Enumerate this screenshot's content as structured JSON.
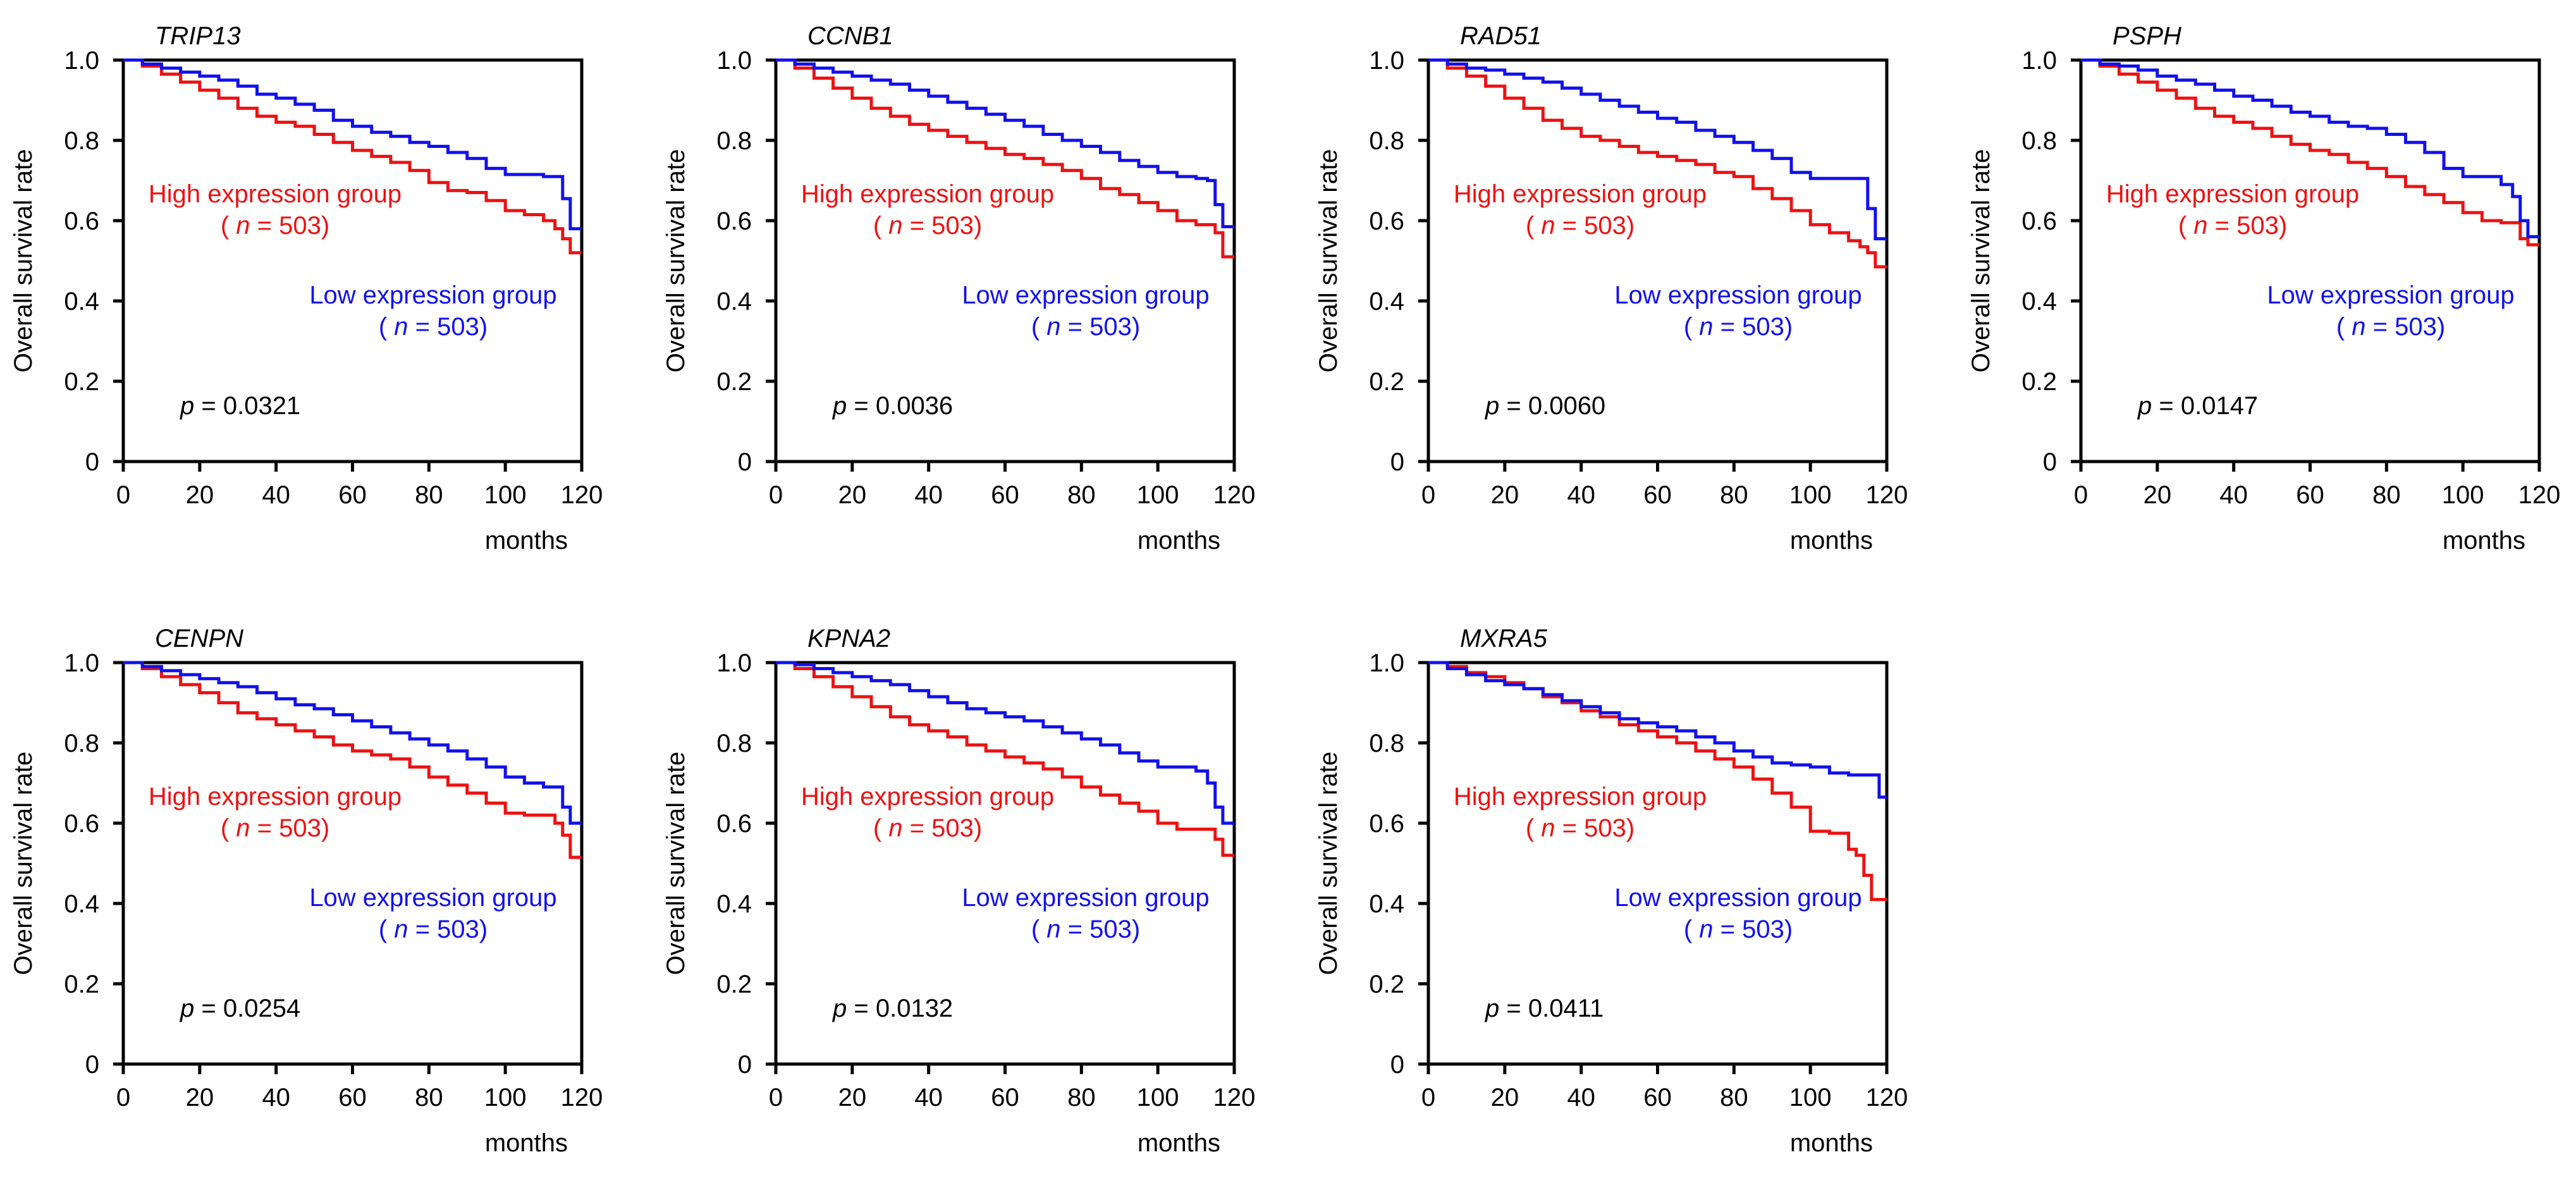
{
  "figure": {
    "xlabel": "months",
    "ylabel": "Overall survival rate",
    "xticks": [
      "0",
      "20",
      "40",
      "60",
      "80",
      "100",
      "120"
    ],
    "yticks": [
      "0",
      "0.2",
      "0.4",
      "0.6",
      "0.8",
      "1.0"
    ],
    "high_group_label": "High expression group",
    "low_group_label": "Low expression group",
    "n_prefix": "( ",
    "n_symbol": "n",
    "n_suffix": " = 503)",
    "p_symbol": "p",
    "colors": {
      "high": "#ee1111",
      "low": "#1111ee",
      "axis": "#000000",
      "text": "#000000"
    }
  },
  "chart_data": [
    {
      "type": "line",
      "title": "TRIP13",
      "p_text": " = 0.0321",
      "xlabel": "months",
      "ylabel": "Overall survival rate",
      "xlim": [
        0,
        120
      ],
      "ylim": [
        0,
        1.0
      ],
      "series": [
        {
          "name": "High expression group (n = 503)",
          "color": "#ee1111",
          "x": [
            0,
            5,
            10,
            15,
            20,
            25,
            30,
            35,
            40,
            45,
            50,
            55,
            60,
            65,
            70,
            75,
            80,
            85,
            90,
            95,
            100,
            105,
            110,
            113,
            115,
            117,
            120
          ],
          "y": [
            1.0,
            0.985,
            0.965,
            0.945,
            0.925,
            0.905,
            0.88,
            0.86,
            0.845,
            0.835,
            0.815,
            0.795,
            0.775,
            0.76,
            0.745,
            0.725,
            0.695,
            0.675,
            0.67,
            0.65,
            0.625,
            0.615,
            0.6,
            0.58,
            0.555,
            0.52,
            0.52
          ]
        },
        {
          "name": "Low expression group (n = 503)",
          "color": "#1111ee",
          "x": [
            0,
            5,
            10,
            15,
            20,
            25,
            30,
            35,
            40,
            45,
            50,
            55,
            60,
            65,
            70,
            75,
            80,
            85,
            90,
            95,
            100,
            105,
            110,
            113,
            115,
            117,
            120
          ],
          "y": [
            1.0,
            0.99,
            0.98,
            0.97,
            0.96,
            0.95,
            0.935,
            0.915,
            0.905,
            0.89,
            0.875,
            0.85,
            0.835,
            0.82,
            0.81,
            0.795,
            0.785,
            0.77,
            0.755,
            0.73,
            0.715,
            0.715,
            0.71,
            0.71,
            0.655,
            0.58,
            0.58
          ]
        }
      ]
    },
    {
      "type": "line",
      "title": "CCNB1",
      "p_text": " = 0.0036",
      "xlabel": "months",
      "ylabel": "Overall survival rate",
      "xlim": [
        0,
        120
      ],
      "ylim": [
        0,
        1.0
      ],
      "series": [
        {
          "name": "High expression group (n = 503)",
          "color": "#ee1111",
          "x": [
            0,
            5,
            10,
            15,
            20,
            25,
            30,
            35,
            40,
            45,
            50,
            55,
            60,
            65,
            70,
            75,
            80,
            85,
            90,
            95,
            100,
            105,
            110,
            113,
            115,
            117,
            120
          ],
          "y": [
            1.0,
            0.98,
            0.955,
            0.93,
            0.905,
            0.88,
            0.86,
            0.84,
            0.825,
            0.81,
            0.795,
            0.78,
            0.765,
            0.755,
            0.74,
            0.725,
            0.705,
            0.68,
            0.665,
            0.645,
            0.625,
            0.6,
            0.59,
            0.59,
            0.57,
            0.51,
            0.51
          ]
        },
        {
          "name": "Low expression group (n = 503)",
          "color": "#1111ee",
          "x": [
            0,
            5,
            10,
            15,
            20,
            25,
            30,
            35,
            40,
            45,
            50,
            55,
            60,
            65,
            70,
            75,
            80,
            85,
            90,
            95,
            100,
            105,
            110,
            113,
            115,
            117,
            120
          ],
          "y": [
            1.0,
            0.99,
            0.98,
            0.97,
            0.96,
            0.95,
            0.94,
            0.925,
            0.91,
            0.895,
            0.88,
            0.865,
            0.85,
            0.835,
            0.815,
            0.8,
            0.785,
            0.77,
            0.75,
            0.735,
            0.72,
            0.71,
            0.705,
            0.7,
            0.64,
            0.585,
            0.585
          ]
        }
      ]
    },
    {
      "type": "line",
      "title": "RAD51",
      "p_text": " = 0.0060",
      "xlabel": "months",
      "ylabel": "Overall survival rate",
      "xlim": [
        0,
        120
      ],
      "ylim": [
        0,
        1.0
      ],
      "series": [
        {
          "name": "High expression group (n = 503)",
          "color": "#ee1111",
          "x": [
            0,
            5,
            10,
            15,
            20,
            25,
            30,
            35,
            40,
            45,
            50,
            55,
            60,
            65,
            70,
            75,
            80,
            85,
            90,
            95,
            100,
            105,
            110,
            113,
            115,
            117,
            120
          ],
          "y": [
            1.0,
            0.98,
            0.96,
            0.935,
            0.905,
            0.88,
            0.85,
            0.83,
            0.81,
            0.8,
            0.785,
            0.77,
            0.76,
            0.75,
            0.74,
            0.72,
            0.71,
            0.68,
            0.655,
            0.625,
            0.59,
            0.57,
            0.55,
            0.535,
            0.52,
            0.485,
            0.485
          ]
        },
        {
          "name": "Low expression group (n = 503)",
          "color": "#1111ee",
          "x": [
            0,
            5,
            10,
            15,
            20,
            25,
            30,
            35,
            40,
            45,
            50,
            55,
            60,
            65,
            70,
            75,
            80,
            85,
            90,
            95,
            100,
            105,
            110,
            113,
            115,
            117,
            120
          ],
          "y": [
            1.0,
            0.99,
            0.98,
            0.975,
            0.965,
            0.955,
            0.945,
            0.93,
            0.915,
            0.9,
            0.885,
            0.87,
            0.855,
            0.845,
            0.825,
            0.81,
            0.795,
            0.775,
            0.755,
            0.72,
            0.705,
            0.705,
            0.705,
            0.705,
            0.63,
            0.555,
            0.555
          ]
        }
      ]
    },
    {
      "type": "line",
      "title": "PSPH",
      "p_text": " = 0.0147",
      "xlabel": "months",
      "ylabel": "Overall survival rate",
      "xlim": [
        0,
        120
      ],
      "ylim": [
        0,
        1.0
      ],
      "series": [
        {
          "name": "High expression group (n = 503)",
          "color": "#ee1111",
          "x": [
            0,
            5,
            10,
            15,
            20,
            25,
            30,
            35,
            40,
            45,
            50,
            55,
            60,
            65,
            70,
            75,
            80,
            85,
            90,
            95,
            100,
            105,
            110,
            113,
            115,
            117,
            120
          ],
          "y": [
            1.0,
            0.985,
            0.965,
            0.945,
            0.925,
            0.905,
            0.88,
            0.86,
            0.845,
            0.83,
            0.81,
            0.79,
            0.775,
            0.765,
            0.745,
            0.73,
            0.71,
            0.685,
            0.665,
            0.645,
            0.62,
            0.6,
            0.595,
            0.595,
            0.555,
            0.54,
            0.54
          ]
        },
        {
          "name": "Low expression group (n = 503)",
          "color": "#1111ee",
          "x": [
            0,
            5,
            10,
            15,
            20,
            25,
            30,
            35,
            40,
            45,
            50,
            55,
            60,
            65,
            70,
            75,
            80,
            85,
            90,
            95,
            100,
            105,
            110,
            113,
            115,
            117,
            120
          ],
          "y": [
            1.0,
            0.99,
            0.985,
            0.975,
            0.96,
            0.95,
            0.94,
            0.925,
            0.91,
            0.9,
            0.885,
            0.87,
            0.86,
            0.845,
            0.835,
            0.83,
            0.815,
            0.795,
            0.77,
            0.73,
            0.71,
            0.71,
            0.69,
            0.66,
            0.6,
            0.56,
            0.56
          ]
        }
      ]
    },
    {
      "type": "line",
      "title": "CENPN",
      "p_text": " = 0.0254",
      "xlabel": "months",
      "ylabel": "Overall survival rate",
      "xlim": [
        0,
        120
      ],
      "ylim": [
        0,
        1.0
      ],
      "series": [
        {
          "name": "High expression group (n = 503)",
          "color": "#ee1111",
          "x": [
            0,
            5,
            10,
            15,
            20,
            25,
            30,
            35,
            40,
            45,
            50,
            55,
            60,
            65,
            70,
            75,
            80,
            85,
            90,
            95,
            100,
            105,
            110,
            113,
            115,
            117,
            120
          ],
          "y": [
            1.0,
            0.985,
            0.965,
            0.945,
            0.925,
            0.9,
            0.875,
            0.86,
            0.845,
            0.83,
            0.815,
            0.795,
            0.78,
            0.77,
            0.76,
            0.74,
            0.715,
            0.695,
            0.675,
            0.65,
            0.625,
            0.62,
            0.62,
            0.6,
            0.57,
            0.515,
            0.515
          ]
        },
        {
          "name": "Low expression group (n = 503)",
          "color": "#1111ee",
          "x": [
            0,
            5,
            10,
            15,
            20,
            25,
            30,
            35,
            40,
            45,
            50,
            55,
            60,
            65,
            70,
            75,
            80,
            85,
            90,
            95,
            100,
            105,
            110,
            113,
            115,
            117,
            120
          ],
          "y": [
            1.0,
            0.99,
            0.98,
            0.97,
            0.96,
            0.95,
            0.94,
            0.925,
            0.91,
            0.895,
            0.885,
            0.87,
            0.855,
            0.84,
            0.825,
            0.81,
            0.795,
            0.78,
            0.76,
            0.74,
            0.715,
            0.7,
            0.69,
            0.69,
            0.64,
            0.6,
            0.6
          ]
        }
      ]
    },
    {
      "type": "line",
      "title": "KPNA2",
      "p_text": " = 0.0132",
      "xlabel": "months",
      "ylabel": "Overall survival rate",
      "xlim": [
        0,
        120
      ],
      "ylim": [
        0,
        1.0
      ],
      "series": [
        {
          "name": "High expression group (n = 503)",
          "color": "#ee1111",
          "x": [
            0,
            5,
            10,
            15,
            20,
            25,
            30,
            35,
            40,
            45,
            50,
            55,
            60,
            65,
            70,
            75,
            80,
            85,
            90,
            95,
            100,
            105,
            110,
            113,
            115,
            117,
            120
          ],
          "y": [
            1.0,
            0.985,
            0.965,
            0.94,
            0.915,
            0.89,
            0.865,
            0.845,
            0.83,
            0.815,
            0.795,
            0.78,
            0.765,
            0.75,
            0.735,
            0.715,
            0.69,
            0.67,
            0.65,
            0.63,
            0.6,
            0.585,
            0.585,
            0.585,
            0.56,
            0.52,
            0.52
          ]
        },
        {
          "name": "Low expression group (n = 503)",
          "color": "#1111ee",
          "x": [
            0,
            5,
            10,
            15,
            20,
            25,
            30,
            35,
            40,
            45,
            50,
            55,
            60,
            65,
            70,
            75,
            80,
            85,
            90,
            95,
            100,
            105,
            110,
            113,
            115,
            117,
            120
          ],
          "y": [
            1.0,
            0.995,
            0.985,
            0.975,
            0.965,
            0.955,
            0.945,
            0.93,
            0.915,
            0.9,
            0.885,
            0.875,
            0.865,
            0.855,
            0.84,
            0.825,
            0.81,
            0.795,
            0.775,
            0.755,
            0.74,
            0.74,
            0.73,
            0.7,
            0.64,
            0.6,
            0.6
          ]
        }
      ]
    },
    {
      "type": "line",
      "title": "MXRA5",
      "p_text": " = 0.0411",
      "xlabel": "months",
      "ylabel": "Overall survival rate",
      "xlim": [
        0,
        120
      ],
      "ylim": [
        0,
        1.0
      ],
      "series": [
        {
          "name": "High expression group (n = 503)",
          "color": "#ee1111",
          "x": [
            0,
            5,
            10,
            15,
            20,
            25,
            30,
            35,
            40,
            45,
            50,
            55,
            60,
            65,
            70,
            75,
            80,
            85,
            90,
            95,
            100,
            105,
            110,
            112,
            114,
            116,
            120
          ],
          "y": [
            1.0,
            0.99,
            0.975,
            0.965,
            0.95,
            0.935,
            0.915,
            0.9,
            0.88,
            0.865,
            0.845,
            0.83,
            0.815,
            0.8,
            0.78,
            0.76,
            0.74,
            0.71,
            0.675,
            0.64,
            0.58,
            0.575,
            0.535,
            0.52,
            0.47,
            0.41,
            0.41
          ]
        },
        {
          "name": "Low expression group (n = 503)",
          "color": "#1111ee",
          "x": [
            0,
            5,
            10,
            15,
            20,
            25,
            30,
            35,
            40,
            45,
            50,
            55,
            60,
            65,
            70,
            75,
            80,
            85,
            90,
            95,
            100,
            105,
            110,
            112,
            114,
            116,
            118,
            120
          ],
          "y": [
            1.0,
            0.985,
            0.97,
            0.955,
            0.945,
            0.935,
            0.92,
            0.905,
            0.89,
            0.875,
            0.86,
            0.85,
            0.84,
            0.83,
            0.815,
            0.8,
            0.78,
            0.765,
            0.75,
            0.745,
            0.74,
            0.725,
            0.72,
            0.72,
            0.72,
            0.72,
            0.665,
            0.665
          ]
        }
      ]
    }
  ]
}
